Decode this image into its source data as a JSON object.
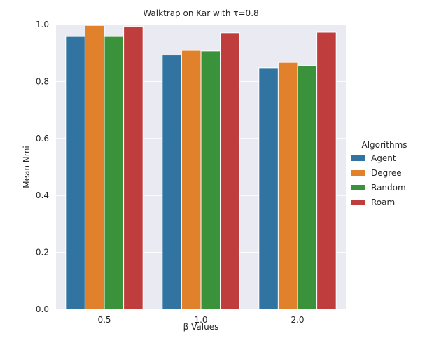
{
  "chart_data": {
    "type": "bar",
    "title": "Walktrap on Kar with τ=0.8",
    "xlabel": "β Values",
    "ylabel": "Mean Nmi",
    "categories": [
      "0.5",
      "1.0",
      "2.0"
    ],
    "ylim": [
      0,
      1
    ],
    "yticks": [
      "0.0",
      "0.2",
      "0.4",
      "0.6",
      "0.8",
      "1.0"
    ],
    "grid": true,
    "legend_title": "Algorithms",
    "legend_placement": "right",
    "series": [
      {
        "name": "Agent",
        "color": "#3274a1",
        "values": [
          0.958,
          0.893,
          0.848
        ]
      },
      {
        "name": "Degree",
        "color": "#e1812c",
        "values": [
          0.997,
          0.909,
          0.867
        ]
      },
      {
        "name": "Random",
        "color": "#3a923a",
        "values": [
          0.958,
          0.907,
          0.855
        ]
      },
      {
        "name": "Roam",
        "color": "#c03d3e",
        "values": [
          0.994,
          0.971,
          0.973
        ]
      }
    ],
    "background_color": "#eaeaf2"
  }
}
